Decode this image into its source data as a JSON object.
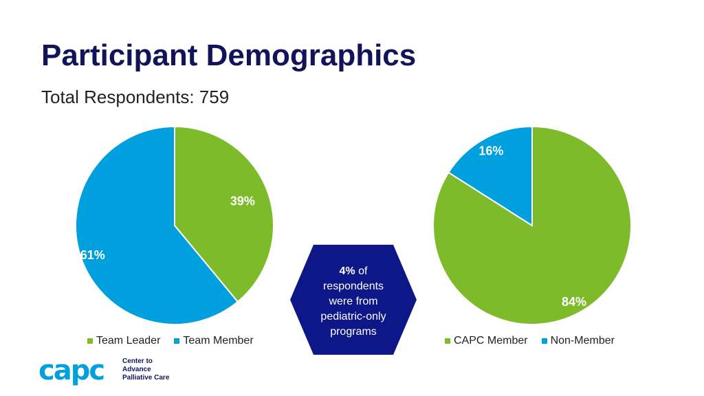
{
  "header": {
    "title": "Participant Demographics",
    "subtitle": "Total Respondents: 759"
  },
  "chart_data": [
    {
      "type": "pie",
      "title": "",
      "slices": [
        {
          "name": "Team Leader",
          "value": 39,
          "label": "39%",
          "color": "#7dbb2a"
        },
        {
          "name": "Team Member",
          "value": 61,
          "label": "61%",
          "color": "#00a0df"
        }
      ],
      "legend": "bottom",
      "legend_entries": [
        "Team Leader",
        "Team Member"
      ]
    },
    {
      "type": "pie",
      "title": "",
      "slices": [
        {
          "name": "CAPC Member",
          "value": 84,
          "label": "84%",
          "color": "#7dbb2a"
        },
        {
          "name": "Non-Member",
          "value": 16,
          "label": "16%",
          "color": "#00a0df"
        }
      ],
      "legend": "bottom",
      "legend_entries": [
        "CAPC Member",
        "Non-Member"
      ]
    }
  ],
  "callout": {
    "percent": "4%",
    "text_after_percent": " of",
    "lines": [
      "respondents",
      "were from",
      "pediatric-only",
      "programs"
    ],
    "color": "#0d1787"
  },
  "logo": {
    "wordmark": "capc",
    "tagline_lines": [
      "Center to",
      "Advance",
      "Palliative Care™"
    ],
    "color": "#00a0df"
  }
}
